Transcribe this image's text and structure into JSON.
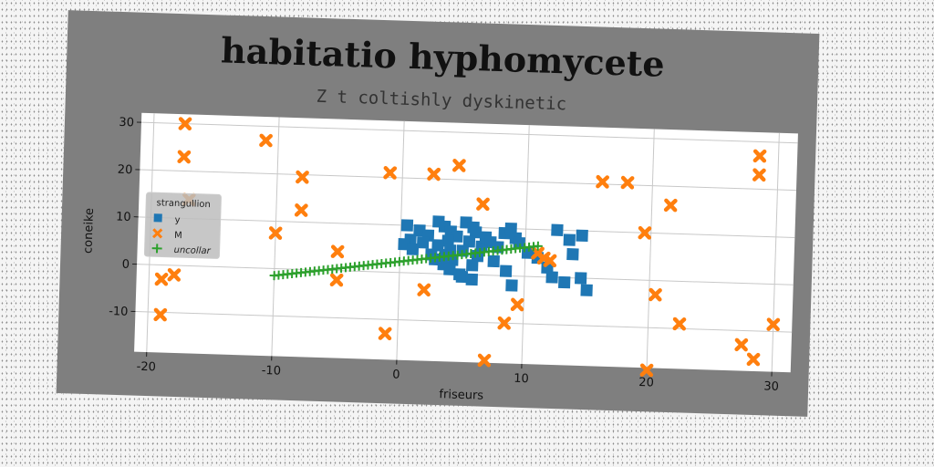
{
  "chart_data": {
    "type": "scatter",
    "title": "habitatio hyphomycete",
    "subtitle": "Z t coltishly dyskinetic",
    "xlabel": "friseurs",
    "ylabel": "coneike",
    "xlim": [
      -21,
      31.5
    ],
    "ylim": [
      -18.5,
      32
    ],
    "xticks": [
      -20,
      -10,
      0,
      10,
      20,
      30
    ],
    "yticks": [
      -10,
      0,
      10,
      20,
      30
    ],
    "grid": true,
    "legend": {
      "title": "strangullion",
      "placement": "center-left",
      "entries": [
        "y",
        "M",
        "uncollar"
      ]
    },
    "series": [
      {
        "name": "y",
        "marker": "square",
        "color": "#1f77b4",
        "points": [
          [
            0.5,
            10
          ],
          [
            1.5,
            9
          ],
          [
            2.2,
            8
          ],
          [
            0.8,
            7
          ],
          [
            1.8,
            6.5
          ],
          [
            0.3,
            6
          ],
          [
            1,
            5
          ],
          [
            2.5,
            4
          ],
          [
            2.8,
            3
          ],
          [
            3,
            11
          ],
          [
            3.5,
            10
          ],
          [
            4,
            9
          ],
          [
            4.5,
            8
          ],
          [
            3.8,
            7
          ],
          [
            3,
            6
          ],
          [
            4,
            5
          ],
          [
            3.6,
            4
          ],
          [
            4.2,
            3
          ],
          [
            3.5,
            2
          ],
          [
            4,
            1
          ],
          [
            4.8,
            0
          ],
          [
            5.2,
            11
          ],
          [
            5.8,
            10
          ],
          [
            6,
            9
          ],
          [
            5.5,
            7
          ],
          [
            6.5,
            6
          ],
          [
            5,
            5
          ],
          [
            6.2,
            4
          ],
          [
            5.8,
            2
          ],
          [
            5,
            -0.5
          ],
          [
            5.8,
            -1
          ],
          [
            6.8,
            8
          ],
          [
            7.2,
            7
          ],
          [
            7.8,
            6
          ],
          [
            8.3,
            9
          ],
          [
            8.8,
            10
          ],
          [
            9.2,
            8
          ],
          [
            7.5,
            3
          ],
          [
            8.5,
            1
          ],
          [
            9,
            -2
          ],
          [
            9.5,
            7
          ],
          [
            10.2,
            5
          ],
          [
            11,
            4
          ],
          [
            12.5,
            10
          ],
          [
            13.5,
            8
          ],
          [
            14.5,
            9
          ],
          [
            11.8,
            2
          ],
          [
            13.2,
            -1
          ],
          [
            14.5,
            0
          ],
          [
            15,
            -2.5
          ],
          [
            13.8,
            5
          ],
          [
            12.2,
            0
          ]
        ]
      },
      {
        "name": "M",
        "marker": "x",
        "color": "#ff7f0e",
        "points": [
          [
            -17.5,
            30
          ],
          [
            -11,
            27
          ],
          [
            -17.5,
            23
          ],
          [
            -17,
            14
          ],
          [
            -8,
            19.5
          ],
          [
            -8,
            12.5
          ],
          [
            -10,
            7.5
          ],
          [
            -19,
            -3
          ],
          [
            -18,
            -2
          ],
          [
            -19,
            -10.5
          ],
          [
            -5,
            4
          ],
          [
            -5,
            -2
          ],
          [
            -1,
            21
          ],
          [
            2.5,
            21
          ],
          [
            4.5,
            23
          ],
          [
            6.5,
            15
          ],
          [
            2,
            -3.5
          ],
          [
            -1,
            -13
          ],
          [
            7,
            -18
          ],
          [
            8.5,
            -10
          ],
          [
            9.5,
            -6
          ],
          [
            11,
            5
          ],
          [
            11.5,
            4
          ],
          [
            12,
            3.5
          ],
          [
            16,
            20.5
          ],
          [
            18,
            20.5
          ],
          [
            19.5,
            10
          ],
          [
            20.5,
            -3
          ],
          [
            20,
            -19
          ],
          [
            21.5,
            16
          ],
          [
            22.5,
            -9
          ],
          [
            27.5,
            -13
          ],
          [
            28.5,
            27
          ],
          [
            28.5,
            23
          ],
          [
            28.5,
            -16
          ],
          [
            30,
            -8.5
          ]
        ]
      },
      {
        "name": "uncollar",
        "marker": "plus",
        "color": "#2ca02c",
        "x_range": [
          -10,
          11
        ],
        "y_range": [
          -1.5,
          6.5
        ],
        "count": 60
      }
    ]
  }
}
